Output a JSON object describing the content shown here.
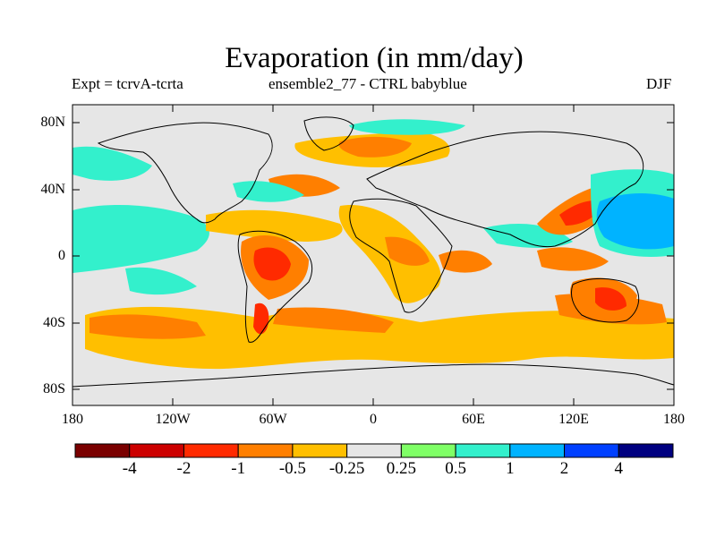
{
  "title": "Evaporation (in mm/day)",
  "subtitle_left": "Expt = tcrvA-tcrta",
  "subtitle_center": "ensemble2_77 - CTRL babyblue",
  "subtitle_right": "DJF",
  "lat_labels": [
    "80N",
    "40N",
    "0",
    "40S",
    "80S"
  ],
  "lon_labels": [
    "180",
    "120W",
    "60W",
    "0",
    "60E",
    "120E",
    "180"
  ],
  "colorbar": {
    "colors": [
      "#7a0000",
      "#cc0000",
      "#ff2a00",
      "#ff7f00",
      "#ffbf00",
      "#e6e6e6",
      "#7fff66",
      "#33f0cc",
      "#00b3ff",
      "#0040ff",
      "#000080"
    ],
    "labels": [
      "-4",
      "-2",
      "-1",
      "-0.5",
      "-0.25",
      "0.25",
      "0.5",
      "1",
      "2",
      "4"
    ]
  },
  "colors": {
    "land_outline": "#000000",
    "ocean_neutral": "#e6e6e6"
  }
}
